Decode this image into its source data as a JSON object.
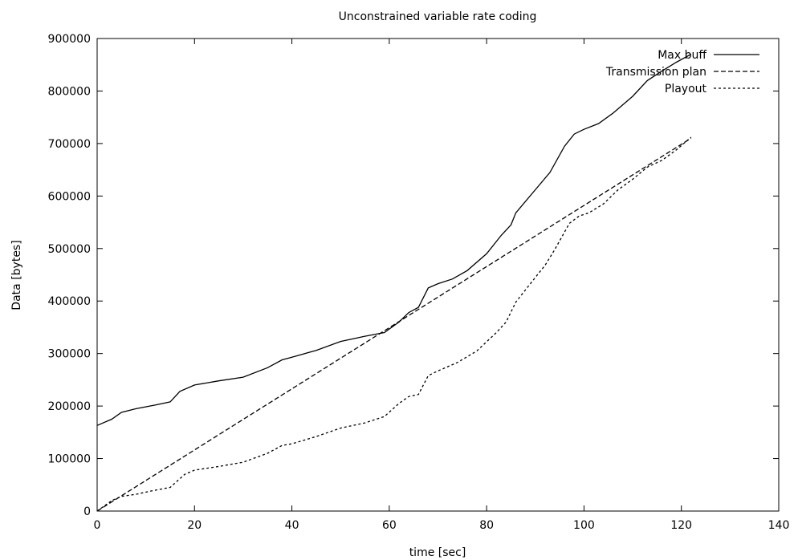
{
  "chart_data": {
    "type": "line",
    "title": "Unconstrained variable rate coding",
    "xlabel": "time [sec]",
    "ylabel": "Data [bytes]",
    "xlim": [
      0,
      140
    ],
    "ylim": [
      0,
      900000
    ],
    "x_ticks": [
      0,
      20,
      40,
      60,
      80,
      100,
      120,
      140
    ],
    "y_ticks": [
      0,
      100000,
      200000,
      300000,
      400000,
      500000,
      600000,
      700000,
      800000,
      900000
    ],
    "grid": false,
    "legend_position": "top-right",
    "series": [
      {
        "name": "Max buff",
        "style": "solid",
        "points": [
          [
            0,
            163000
          ],
          [
            3,
            175000
          ],
          [
            5,
            188000
          ],
          [
            8,
            195000
          ],
          [
            12,
            202000
          ],
          [
            15,
            208000
          ],
          [
            17,
            228000
          ],
          [
            20,
            240000
          ],
          [
            25,
            248000
          ],
          [
            30,
            255000
          ],
          [
            35,
            273000
          ],
          [
            38,
            288000
          ],
          [
            40,
            293000
          ],
          [
            45,
            306000
          ],
          [
            50,
            323000
          ],
          [
            55,
            333000
          ],
          [
            59,
            340000
          ],
          [
            62,
            360000
          ],
          [
            64,
            378000
          ],
          [
            66,
            388000
          ],
          [
            68,
            425000
          ],
          [
            70,
            433000
          ],
          [
            73,
            442000
          ],
          [
            76,
            458000
          ],
          [
            80,
            490000
          ],
          [
            83,
            525000
          ],
          [
            85,
            545000
          ],
          [
            86,
            568000
          ],
          [
            90,
            612000
          ],
          [
            93,
            645000
          ],
          [
            96,
            695000
          ],
          [
            98,
            718000
          ],
          [
            100,
            727000
          ],
          [
            103,
            738000
          ],
          [
            106,
            758000
          ],
          [
            110,
            790000
          ],
          [
            113,
            820000
          ],
          [
            116,
            838000
          ],
          [
            119,
            855000
          ],
          [
            122,
            870000
          ]
        ]
      },
      {
        "name": "Transmission plan",
        "style": "dashed",
        "points": [
          [
            0,
            0
          ],
          [
            122,
            710000
          ]
        ]
      },
      {
        "name": "Playout",
        "style": "dotted",
        "points": [
          [
            0,
            0
          ],
          [
            3,
            20000
          ],
          [
            5,
            28000
          ],
          [
            8,
            32000
          ],
          [
            11,
            38000
          ],
          [
            15,
            45000
          ],
          [
            18,
            70000
          ],
          [
            20,
            78000
          ],
          [
            25,
            85000
          ],
          [
            30,
            93000
          ],
          [
            35,
            110000
          ],
          [
            38,
            125000
          ],
          [
            40,
            128000
          ],
          [
            45,
            142000
          ],
          [
            50,
            158000
          ],
          [
            55,
            168000
          ],
          [
            59,
            180000
          ],
          [
            62,
            205000
          ],
          [
            64,
            218000
          ],
          [
            66,
            222000
          ],
          [
            68,
            258000
          ],
          [
            70,
            267000
          ],
          [
            74,
            283000
          ],
          [
            78,
            305000
          ],
          [
            82,
            340000
          ],
          [
            84,
            360000
          ],
          [
            86,
            398000
          ],
          [
            90,
            445000
          ],
          [
            92,
            468000
          ],
          [
            94,
            498000
          ],
          [
            97,
            548000
          ],
          [
            99,
            562000
          ],
          [
            101,
            568000
          ],
          [
            104,
            585000
          ],
          [
            107,
            612000
          ],
          [
            110,
            632000
          ],
          [
            113,
            655000
          ],
          [
            116,
            668000
          ],
          [
            119,
            688000
          ],
          [
            122,
            712000
          ]
        ]
      }
    ]
  }
}
